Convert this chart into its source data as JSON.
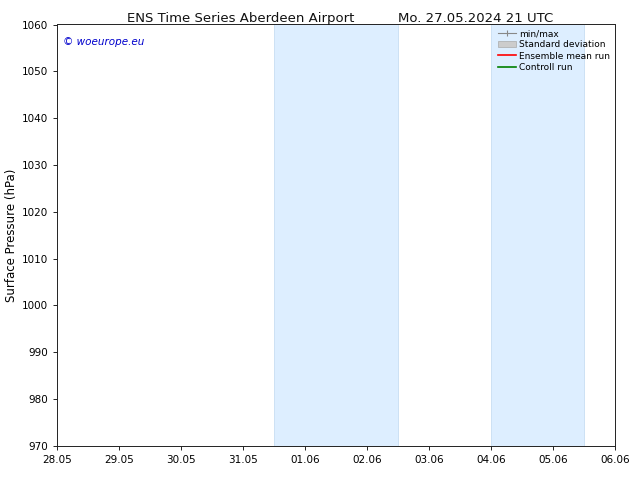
{
  "title_left": "ENS Time Series Aberdeen Airport",
  "title_right": "Mo. 27.05.2024 21 UTC",
  "ylabel": "Surface Pressure (hPa)",
  "ylim": [
    970,
    1060
  ],
  "yticks": [
    970,
    980,
    990,
    1000,
    1010,
    1020,
    1030,
    1040,
    1050,
    1060
  ],
  "xlim": [
    0,
    9
  ],
  "xtick_labels": [
    "28.05",
    "29.05",
    "30.05",
    "31.05",
    "01.06",
    "02.06",
    "03.06",
    "04.06",
    "05.06",
    "06.06"
  ],
  "xtick_positions": [
    0,
    1,
    2,
    3,
    4,
    5,
    6,
    7,
    8,
    9
  ],
  "shade_regions": [
    {
      "xmin": 3.5,
      "xmax": 5.5
    },
    {
      "xmin": 7.0,
      "xmax": 8.5
    }
  ],
  "shade_color": "#ddeeff",
  "shade_edge_color": "#c0d8f0",
  "watermark_text": "© woeurope.eu",
  "watermark_color": "#0000cc",
  "legend_entries": [
    {
      "label": "min/max",
      "color": "#999999",
      "lw": 1.0
    },
    {
      "label": "Standard deviation",
      "color": "#cccccc",
      "lw": 5
    },
    {
      "label": "Ensemble mean run",
      "color": "#ff0000",
      "lw": 1.2
    },
    {
      "label": "Controll run",
      "color": "#008000",
      "lw": 1.2
    }
  ],
  "bg_color": "#ffffff",
  "grid_color": "#dddddd",
  "title_fontsize": 9.5,
  "tick_fontsize": 7.5,
  "ylabel_fontsize": 8.5,
  "watermark_fontsize": 7.5,
  "legend_fontsize": 6.5
}
